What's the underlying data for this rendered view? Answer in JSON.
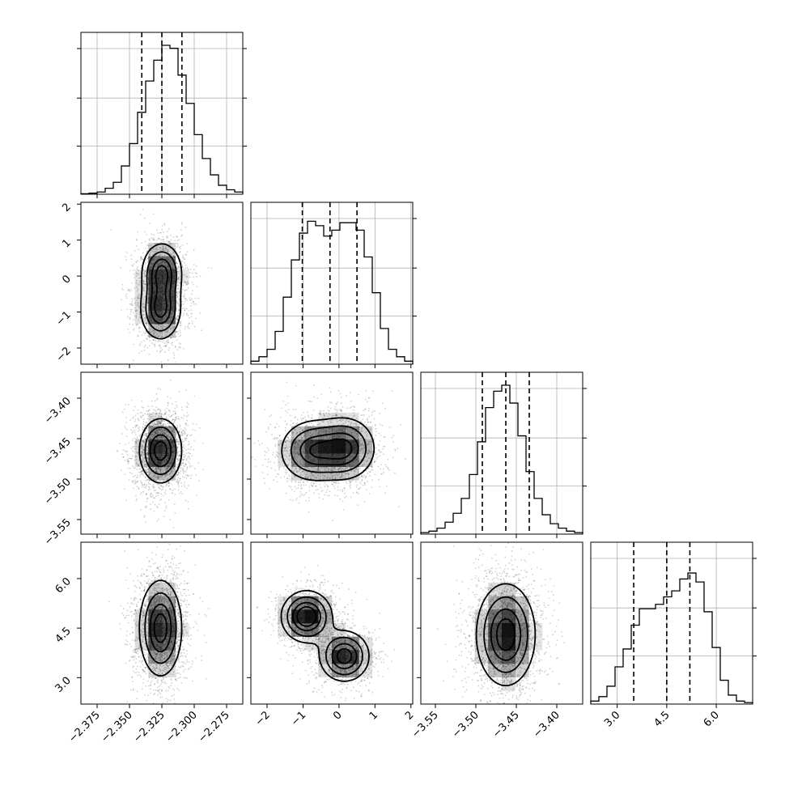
{
  "chart_data": {
    "type": "corner",
    "params": [
      {
        "range": [
          -2.3875,
          -2.2625
        ],
        "ticks": [
          -2.375,
          -2.35,
          -2.325,
          -2.3,
          -2.275
        ],
        "tick_labels": [
          "−2.375",
          "−2.350",
          "−2.325",
          "−2.300",
          "−2.275"
        ],
        "quantiles": [
          -2.3405,
          -2.325,
          -2.3095
        ],
        "hist_bins": [
          0.003,
          0.007,
          0.015,
          0.04,
          0.08,
          0.19,
          0.34,
          0.55,
          0.76,
          0.9,
          1.0,
          0.98,
          0.8,
          0.61,
          0.4,
          0.24,
          0.13,
          0.06,
          0.03,
          0.015
        ],
        "hist_bins_note": "relative heights"
      },
      {
        "range": [
          -2.45,
          2.05
        ],
        "ticks": [
          -2,
          -1,
          0,
          1,
          2
        ],
        "tick_labels": [
          "−2",
          "−1",
          "0",
          "1",
          "2"
        ],
        "quantiles": [
          -1.02,
          -0.25,
          0.5
        ],
        "hist_bins": [
          0.02,
          0.05,
          0.1,
          0.22,
          0.45,
          0.7,
          0.88,
          0.96,
          0.93,
          0.86,
          0.9,
          0.95,
          0.95,
          0.9,
          0.72,
          0.48,
          0.24,
          0.1,
          0.05,
          0.02
        ],
        "hist_bins_note": "relative heights"
      },
      {
        "range": [
          -3.568,
          -3.368
        ],
        "ticks": [
          -3.55,
          -3.5,
          -3.45,
          -3.4
        ],
        "tick_labels": [
          "−3.55",
          "−3.50",
          "−3.45",
          "−3.40"
        ],
        "quantiles": [
          -3.492,
          -3.463,
          -3.434
        ],
        "hist_bins": [
          0.01,
          0.02,
          0.04,
          0.08,
          0.14,
          0.24,
          0.4,
          0.62,
          0.85,
          0.96,
          1.0,
          0.88,
          0.66,
          0.42,
          0.24,
          0.13,
          0.07,
          0.04,
          0.02,
          0.01
        ],
        "hist_bins_note": "relative heights"
      },
      {
        "range": [
          2.2,
          7.1
        ],
        "ticks": [
          3,
          4.5,
          6
        ],
        "tick_labels": [
          "3.0",
          "4.5",
          "6.0"
        ],
        "quantiles": [
          3.5,
          4.5,
          5.2
        ],
        "hist_bins": [
          0.02,
          0.05,
          0.12,
          0.25,
          0.37,
          0.53,
          0.64,
          0.64,
          0.67,
          0.72,
          0.76,
          0.84,
          0.88,
          0.82,
          0.62,
          0.38,
          0.16,
          0.06,
          0.02,
          0.01
        ],
        "hist_bins_note": "relative heights"
      }
    ],
    "pairs": [
      {
        "row": 1,
        "col": 0,
        "modes": [
          {
            "x": -2.325,
            "y": 0.1,
            "w": 1.0,
            "sx": 0.0085,
            "sy": 0.45
          },
          {
            "x": -2.326,
            "y": -0.95,
            "w": 1.0,
            "sx": 0.0085,
            "sy": 0.45
          }
        ],
        "contour_levels": [
          0.2,
          0.42,
          0.68,
          0.88
        ]
      },
      {
        "row": 2,
        "col": 0,
        "modes": [
          {
            "x": -2.326,
            "y": -3.465,
            "w": 1.0,
            "sx": 0.009,
            "sy": 0.022
          }
        ],
        "contour_levels": [
          0.2,
          0.42,
          0.68,
          0.88
        ]
      },
      {
        "row": 2,
        "col": 1,
        "modes": [
          {
            "x": -0.75,
            "y": -3.465,
            "w": 1.0,
            "sx": 0.5,
            "sy": 0.021
          },
          {
            "x": 0.2,
            "y": -3.462,
            "w": 1.05,
            "sx": 0.45,
            "sy": 0.021
          }
        ],
        "contour_levels": [
          0.2,
          0.42,
          0.68,
          0.88
        ]
      },
      {
        "row": 3,
        "col": 0,
        "modes": [
          {
            "x": -2.326,
            "y": 4.5,
            "w": 1.0,
            "sx": 0.009,
            "sy": 0.8
          }
        ],
        "contour_levels": [
          0.2,
          0.42,
          0.68,
          0.88
        ]
      },
      {
        "row": 3,
        "col": 1,
        "modes": [
          {
            "x": -0.9,
            "y": 4.85,
            "w": 1.0,
            "sx": 0.38,
            "sy": 0.42
          },
          {
            "x": 0.15,
            "y": 3.65,
            "w": 0.9,
            "sx": 0.38,
            "sy": 0.42
          }
        ],
        "contour_levels": [
          0.2,
          0.42,
          0.68,
          0.88
        ]
      },
      {
        "row": 3,
        "col": 2,
        "modes": [
          {
            "x": -3.463,
            "y": 4.3,
            "w": 1.0,
            "sx": 0.02,
            "sy": 0.85
          }
        ],
        "contour_levels": [
          0.2,
          0.42,
          0.68,
          0.88
        ]
      }
    ],
    "grid": true
  }
}
